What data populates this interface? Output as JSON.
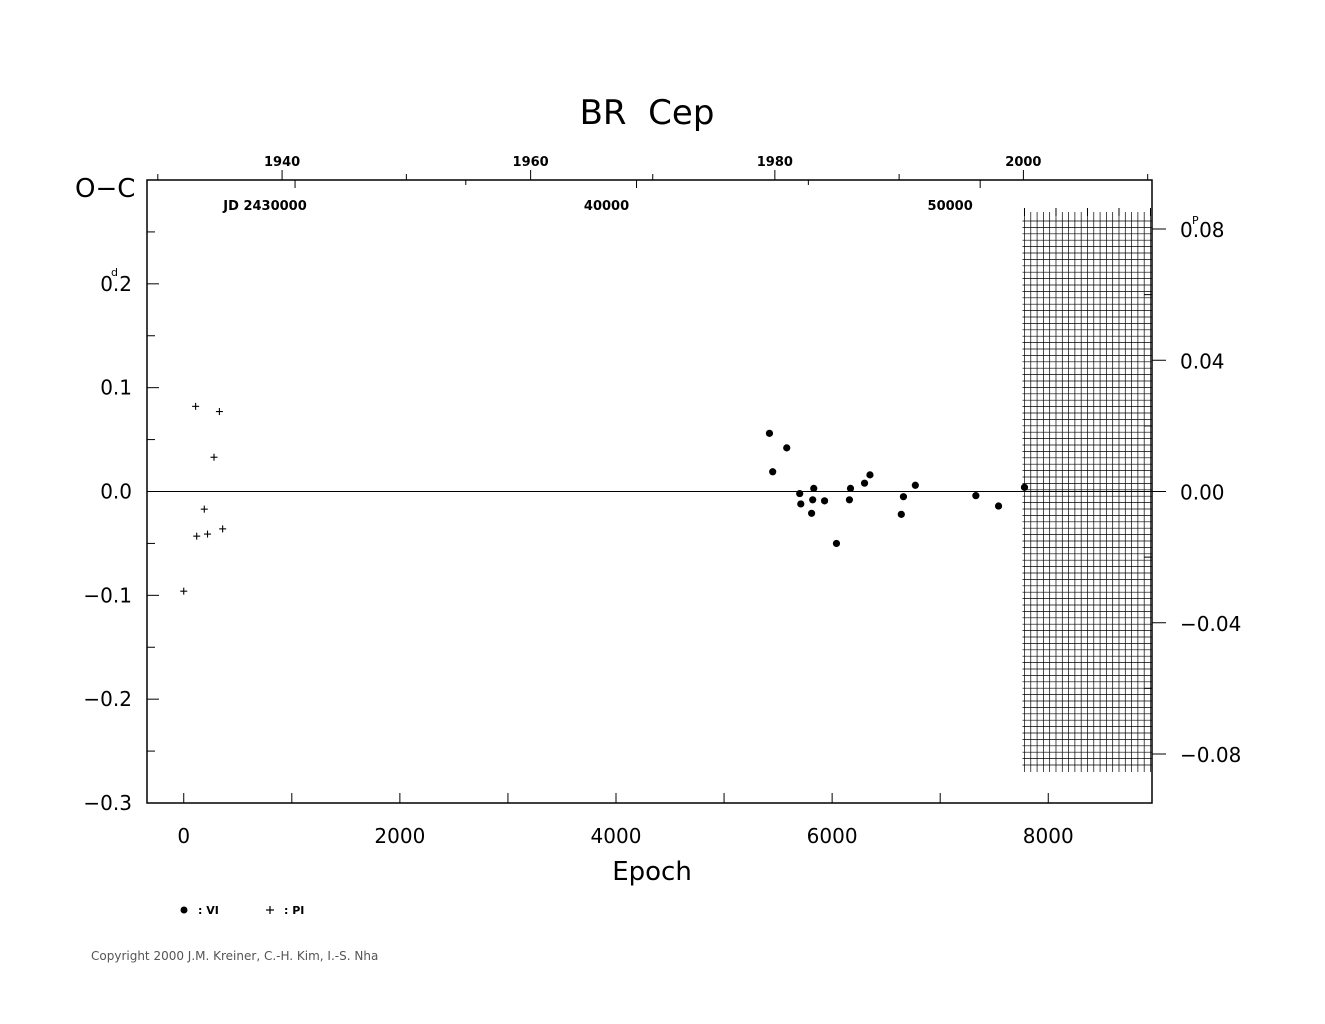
{
  "chart_data": {
    "type": "scatter",
    "title": "BR  Cep",
    "xlabel": "Epoch",
    "ylabel": "O−C",
    "ylabel_unit": "d",
    "right_unit": "P",
    "xlim": [
      -340,
      8960
    ],
    "ylim": [
      -0.3,
      0.3
    ],
    "right_ylim": [
      -0.08,
      0.08
    ],
    "x_ticks": [
      "0",
      "2000",
      "4000",
      "6000",
      "8000"
    ],
    "x_tick_values": [
      0,
      2000,
      4000,
      6000,
      8000
    ],
    "y_ticks": [
      "−0.3",
      "−0.2",
      "−0.1",
      "0.0",
      "0.1",
      "0.2"
    ],
    "y_tick_values": [
      -0.3,
      -0.2,
      -0.1,
      0.0,
      0.1,
      0.2
    ],
    "right_ticks": [
      "−0.08",
      "−0.04",
      "0.00",
      "0.04",
      "0.08"
    ],
    "right_tick_values": [
      -0.08,
      -0.04,
      0.0,
      0.04,
      0.08
    ],
    "top_years": [
      {
        "label": "1940",
        "epoch": 910
      },
      {
        "label": "1960",
        "epoch": 3210
      },
      {
        "label": "1980",
        "epoch": 5470
      },
      {
        "label": "2000",
        "epoch": 7770
      }
    ],
    "top_jd": [
      {
        "label": "JD  2430000",
        "epoch": 1030
      },
      {
        "label": "40000",
        "epoch": 4190
      },
      {
        "label": "50000",
        "epoch": 7370
      }
    ],
    "shaded_from_epoch": 7780,
    "series": [
      {
        "name": "VI",
        "marker": "dot",
        "x": [
          5420,
          5450,
          5580,
          5700,
          5710,
          5810,
          5820,
          5830,
          5930,
          6040,
          6160,
          6170,
          6300,
          6350,
          6640,
          6660,
          6770,
          7330,
          7540,
          7780
        ],
        "y": [
          0.056,
          0.019,
          0.042,
          -0.002,
          -0.012,
          -0.021,
          -0.008,
          0.003,
          -0.009,
          -0.05,
          -0.008,
          0.003,
          0.008,
          0.016,
          -0.022,
          -0.005,
          0.006,
          -0.004,
          -0.014,
          0.004
        ]
      },
      {
        "name": "PI",
        "marker": "plus",
        "x": [
          0,
          110,
          120,
          190,
          220,
          280,
          330,
          360
        ],
        "y": [
          -0.096,
          0.082,
          -0.043,
          -0.017,
          -0.041,
          0.033,
          0.077,
          -0.036
        ]
      }
    ],
    "legend": [
      {
        "marker": "dot",
        "label": ": VI"
      },
      {
        "marker": "plus",
        "label": ": PI"
      }
    ],
    "legend_position": "below-left"
  },
  "copyright": "Copyright 2000 J.M. Kreiner, C.-H. Kim, I.-S. Nha"
}
